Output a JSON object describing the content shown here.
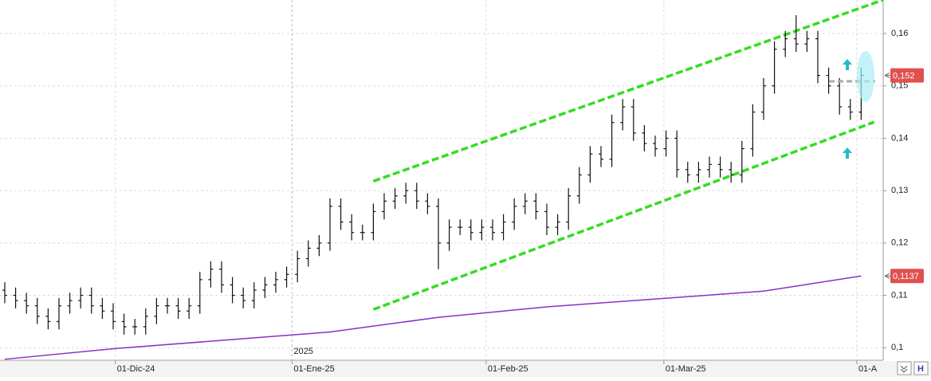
{
  "chart_data": {
    "type": "ohlc",
    "bar_color": "#111111",
    "open": [
      0.111,
      0.11,
      0.109,
      0.108,
      0.106,
      0.105,
      0.108,
      0.109,
      0.11,
      0.108,
      0.107,
      0.105,
      0.104,
      0.104,
      0.106,
      0.108,
      0.108,
      0.107,
      0.108,
      0.113,
      0.115,
      0.112,
      0.11,
      0.109,
      0.111,
      0.112,
      0.113,
      0.114,
      0.117,
      0.119,
      0.12,
      0.127,
      0.124,
      0.122,
      0.122,
      0.126,
      0.128,
      0.129,
      0.13,
      0.128,
      0.127,
      0.12,
      0.123,
      0.123,
      0.122,
      0.123,
      0.122,
      0.124,
      0.127,
      0.128,
      0.126,
      0.123,
      0.124,
      0.129,
      0.133,
      0.137,
      0.136,
      0.143,
      0.146,
      0.141,
      0.139,
      0.138,
      0.14,
      0.134,
      0.133,
      0.134,
      0.135,
      0.134,
      0.133,
      0.138,
      0.145,
      0.15,
      0.157,
      0.159,
      0.158,
      0.159,
      0.152,
      0.15,
      0.146,
      0.145
    ],
    "high": [
      0.1125,
      0.1115,
      0.1105,
      0.1095,
      0.1075,
      0.1095,
      0.1105,
      0.1115,
      0.1115,
      0.1095,
      0.1085,
      0.1065,
      0.1055,
      0.1075,
      0.1095,
      0.1095,
      0.1095,
      0.1095,
      0.1145,
      0.1165,
      0.1165,
      0.1135,
      0.1115,
      0.1125,
      0.1135,
      0.1145,
      0.1155,
      0.1185,
      0.1205,
      0.1215,
      0.1285,
      0.1285,
      0.1255,
      0.1235,
      0.1275,
      0.1295,
      0.1305,
      0.1315,
      0.1315,
      0.1295,
      0.1285,
      0.1245,
      0.1245,
      0.1245,
      0.1245,
      0.1245,
      0.1255,
      0.1285,
      0.1295,
      0.1295,
      0.1275,
      0.1255,
      0.1305,
      0.1345,
      0.1385,
      0.1385,
      0.1445,
      0.1475,
      0.1475,
      0.1425,
      0.1405,
      0.1415,
      0.1415,
      0.1355,
      0.1355,
      0.1365,
      0.1365,
      0.1355,
      0.1395,
      0.1465,
      0.1515,
      0.1585,
      0.1605,
      0.1635,
      0.1605,
      0.1605,
      0.1535,
      0.1515,
      0.1475,
      0.1535
    ],
    "low": [
      0.1085,
      0.1075,
      0.1065,
      0.1045,
      0.1035,
      0.1035,
      0.1065,
      0.1075,
      0.1065,
      0.1055,
      0.1035,
      0.1025,
      0.1025,
      0.1025,
      0.1045,
      0.1065,
      0.1055,
      0.1055,
      0.1065,
      0.1115,
      0.1105,
      0.1085,
      0.1075,
      0.1075,
      0.1095,
      0.1105,
      0.1115,
      0.1125,
      0.1155,
      0.1175,
      0.1185,
      0.1225,
      0.1205,
      0.1205,
      0.1205,
      0.1245,
      0.1265,
      0.1275,
      0.1265,
      0.1255,
      0.115,
      0.1185,
      0.1215,
      0.1205,
      0.1205,
      0.1205,
      0.1205,
      0.1225,
      0.1255,
      0.1245,
      0.1215,
      0.1215,
      0.1225,
      0.1275,
      0.1315,
      0.1345,
      0.1345,
      0.1415,
      0.1395,
      0.1375,
      0.1365,
      0.1365,
      0.1325,
      0.1315,
      0.1315,
      0.1325,
      0.1325,
      0.1315,
      0.1315,
      0.1365,
      0.1435,
      0.1485,
      0.1555,
      0.1565,
      0.1565,
      0.1505,
      0.1485,
      0.1445,
      0.1435,
      0.1435
    ],
    "close": [
      0.11,
      0.109,
      0.108,
      0.106,
      0.105,
      0.108,
      0.109,
      0.11,
      0.108,
      0.107,
      0.105,
      0.104,
      0.104,
      0.106,
      0.108,
      0.108,
      0.107,
      0.108,
      0.113,
      0.115,
      0.112,
      0.11,
      0.109,
      0.111,
      0.112,
      0.113,
      0.114,
      0.117,
      0.119,
      0.12,
      0.127,
      0.124,
      0.122,
      0.122,
      0.126,
      0.128,
      0.129,
      0.13,
      0.128,
      0.127,
      0.12,
      0.123,
      0.123,
      0.122,
      0.123,
      0.122,
      0.124,
      0.127,
      0.128,
      0.126,
      0.123,
      0.124,
      0.129,
      0.133,
      0.137,
      0.136,
      0.143,
      0.146,
      0.141,
      0.139,
      0.138,
      0.14,
      0.134,
      0.133,
      0.134,
      0.135,
      0.134,
      0.133,
      0.138,
      0.145,
      0.15,
      0.157,
      0.159,
      0.158,
      0.159,
      0.152,
      0.15,
      0.146,
      0.145,
      0.152
    ],
    "moving_average": {
      "color": "#8a2fc9",
      "x": [
        0,
        10,
        20,
        30,
        40,
        50,
        60,
        70,
        79
      ],
      "values": [
        0.0978,
        0.0998,
        0.1014,
        0.103,
        0.1058,
        0.1078,
        0.1093,
        0.1108,
        0.1137
      ]
    },
    "channel": [
      {
        "color": "#33dd22",
        "x": [
          34,
          81
        ],
        "values": [
          0.1318,
          0.1664
        ]
      },
      {
        "color": "#33dd22",
        "x": [
          34,
          80.2
        ],
        "values": [
          0.1073,
          0.1431
        ]
      }
    ],
    "xlim": [
      -0.44,
      81.03
    ],
    "ylim": [
      0.0976,
      0.1664
    ],
    "xticks": [
      {
        "value": 10.2,
        "label": "01-Dic-24"
      },
      {
        "value": 26.5,
        "label": "01-Ene-25"
      },
      {
        "value": 44.4,
        "label": "01-Feb-25"
      },
      {
        "value": 60.8,
        "label": "01-Mar-25"
      },
      {
        "value": 78.6,
        "label": "01-A"
      }
    ],
    "yticks": [
      {
        "value": 0.1,
        "label": "0,1"
      },
      {
        "value": 0.11,
        "label": "0,11"
      },
      {
        "value": 0.12,
        "label": "0,12"
      },
      {
        "value": 0.13,
        "label": "0,13"
      },
      {
        "value": 0.14,
        "label": "0,14"
      },
      {
        "value": 0.15,
        "label": "0,15"
      },
      {
        "value": 0.16,
        "label": "0,16"
      }
    ],
    "year_label": "2025",
    "price_labels": [
      {
        "value": 0.152,
        "label": "0,152"
      },
      {
        "value": 0.1137,
        "label": "0,1137"
      }
    ],
    "grid": true
  }
}
